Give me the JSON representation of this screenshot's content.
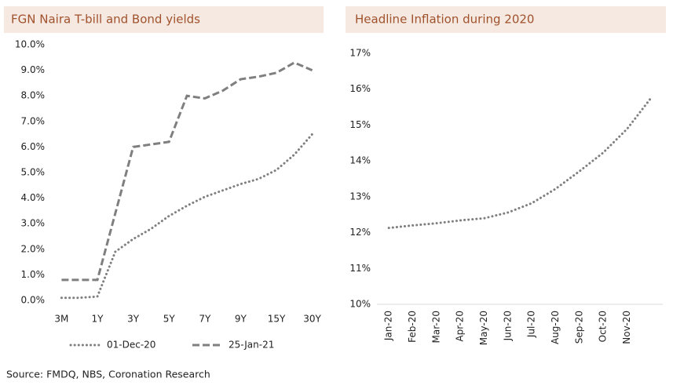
{
  "chart_data": [
    {
      "type": "line",
      "title": "FGN Naira T-bill and Bond yields",
      "categories": [
        "3M",
        null,
        "1Y",
        null,
        "3Y",
        null,
        "5Y",
        null,
        "7Y",
        null,
        "9Y",
        null,
        "15Y",
        null,
        "30Y"
      ],
      "series": [
        {
          "name": "01-Dec-20",
          "color": "#7f7f7f",
          "line_style": "dotted",
          "values": [
            0.1,
            0.1,
            0.15,
            1.9,
            2.4,
            2.8,
            3.3,
            3.7,
            4.05,
            4.3,
            4.55,
            4.75,
            5.1,
            5.7,
            6.5
          ]
        },
        {
          "name": "25-Jan-21",
          "color": "#7f7f7f",
          "line_style": "dashed",
          "values": [
            0.8,
            0.8,
            0.8,
            3.4,
            6.0,
            6.1,
            6.2,
            8.0,
            7.9,
            8.2,
            8.65,
            8.75,
            8.9,
            9.3,
            9.0
          ]
        }
      ],
      "ylim": [
        0,
        10
      ],
      "yticks": [
        {
          "value": 0,
          "label": "0.0%"
        },
        {
          "value": 1,
          "label": "1.0%"
        },
        {
          "value": 2,
          "label": "2.0%"
        },
        {
          "value": 3,
          "label": "3.0%"
        },
        {
          "value": 4,
          "label": "4.0%"
        },
        {
          "value": 5,
          "label": "5.0%"
        },
        {
          "value": 6,
          "label": "6.0%"
        },
        {
          "value": 7,
          "label": "7.0%"
        },
        {
          "value": 8,
          "label": "8.0%"
        },
        {
          "value": 9,
          "label": "9.0%"
        },
        {
          "value": 10,
          "label": "10.0%"
        }
      ],
      "legend": "bottom"
    },
    {
      "type": "line",
      "title": "Headline Inflation during 2020",
      "categories": [
        "Jan-20",
        "Feb-20",
        "Mar-20",
        "Apr-20",
        "May-20",
        "Jun-20",
        "Jul-20",
        "Aug-20",
        "Sep-20",
        "Oct-20",
        "Nov-20",
        null
      ],
      "series": [
        {
          "color": "#7f7f7f",
          "line_style": "dotted",
          "values": [
            12.13,
            12.2,
            12.26,
            12.34,
            12.4,
            12.56,
            12.82,
            13.22,
            13.71,
            14.23,
            14.89,
            15.75
          ]
        }
      ],
      "ylim": [
        10,
        17
      ],
      "yticks": [
        {
          "value": 10,
          "label": "10%"
        },
        {
          "value": 11,
          "label": "11%"
        },
        {
          "value": 12,
          "label": "12%"
        },
        {
          "value": 13,
          "label": "13%"
        },
        {
          "value": 14,
          "label": "14%"
        },
        {
          "value": 15,
          "label": "15%"
        },
        {
          "value": 16,
          "label": "16%"
        },
        {
          "value": 17,
          "label": "17%"
        }
      ],
      "rotate_x_labels": true
    }
  ],
  "source": "Source: FMDQ, NBS, Coronation Research"
}
